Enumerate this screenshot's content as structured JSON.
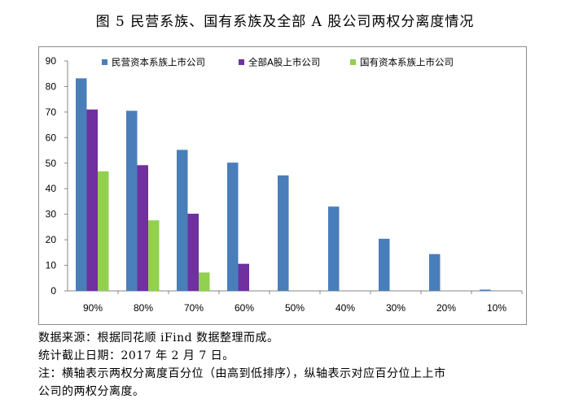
{
  "title": "图 5 民营系族、国有系族及全部 A 股公司两权分离度情况",
  "chart_data": {
    "type": "bar",
    "categories": [
      "90%",
      "80%",
      "70%",
      "60%",
      "50%",
      "40%",
      "30%",
      "20%",
      "10%"
    ],
    "series": [
      {
        "name": "民营资本系族上市公司",
        "color": "#4a7ebb",
        "values": [
          83.2,
          70.5,
          55.2,
          50.2,
          45.2,
          33,
          20.4,
          14.4,
          0.5
        ]
      },
      {
        "name": "全部A股上市公司",
        "color": "#7030a0",
        "values": [
          71,
          49.2,
          30.2,
          10.6,
          0,
          0,
          0,
          0,
          0
        ]
      },
      {
        "name": "国有资本系族上市公司",
        "color": "#92d050",
        "values": [
          46.8,
          27.6,
          7.2,
          0,
          0,
          0,
          0,
          0,
          0
        ]
      }
    ],
    "ylim": [
      0,
      90
    ],
    "yticks": [
      "0",
      "10",
      "20",
      "30",
      "40",
      "50",
      "60",
      "70",
      "80",
      "90"
    ],
    "grid": false,
    "legend_position": "top"
  },
  "notes": [
    "数据来源：根据同花顺 iFind 数据整理而成。",
    "统计截止日期：2017 年 2 月 7 日。",
    "注：横轴表示两权分离度百分位（由高到低排序），纵轴表示对应百分位上上市",
    "公司的两权分离度。"
  ]
}
